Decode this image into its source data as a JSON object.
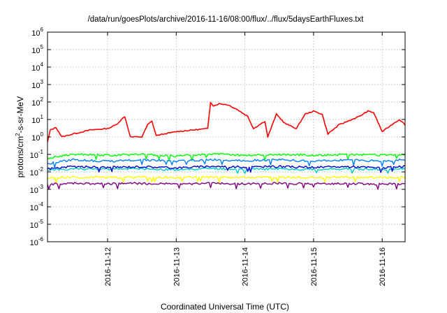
{
  "chart_data": {
    "type": "line",
    "title": "/data/run/goesPlots/archive/2016-11-16/08:00/flux/../flux/5daysEarthFluxes.txt",
    "xlabel": "Coordinated Universal Time (UTC)",
    "ylabel": {
      "main": "protons/cm",
      "sup": "2",
      "rest": "-s-sr-MeV"
    },
    "yscale": "log",
    "ylim": [
      1e-06,
      1000000.0
    ],
    "y_ticks": [
      {
        "base": "10",
        "exp": "-6",
        "value": 1e-06
      },
      {
        "base": "10",
        "exp": "-5",
        "value": 1e-05
      },
      {
        "base": "10",
        "exp": "-4",
        "value": 0.0001
      },
      {
        "base": "10",
        "exp": "-3",
        "value": 0.001
      },
      {
        "base": "10",
        "exp": "-2",
        "value": 0.01
      },
      {
        "base": "10",
        "exp": "-1",
        "value": 0.1
      },
      {
        "base": "10",
        "exp": "0",
        "value": 1
      },
      {
        "base": "10",
        "exp": "1",
        "value": 10
      },
      {
        "base": "10",
        "exp": "2",
        "value": 100
      },
      {
        "base": "10",
        "exp": "3",
        "value": 1000
      },
      {
        "base": "10",
        "exp": "4",
        "value": 10000
      },
      {
        "base": "10",
        "exp": "5",
        "value": 100000
      },
      {
        "base": "10",
        "exp": "6",
        "value": 1000000
      }
    ],
    "xlim": [
      "2016-11-11 03:00",
      "2016-11-16 08:00"
    ],
    "x_ticks": [
      "2016-11-12",
      "2016-11-13",
      "2016-11-14",
      "2016-11-15",
      "2016-11-16"
    ],
    "grid": true,
    "series": [
      {
        "color": "#ff0000",
        "points": [
          [
            "2016-11-11 03:00",
            0.5
          ],
          [
            "2016-11-11 04:00",
            2.5
          ],
          [
            "2016-11-11 06:00",
            3.5
          ],
          [
            "2016-11-11 08:00",
            1.0
          ],
          [
            "2016-11-11 12:00",
            1.5
          ],
          [
            "2016-11-11 18:00",
            2.5
          ],
          [
            "2016-11-12 00:00",
            3.0
          ],
          [
            "2016-11-12 03:00",
            5.0
          ],
          [
            "2016-11-12 06:00",
            15
          ],
          [
            "2016-11-12 08:00",
            1.0
          ],
          [
            "2016-11-12 12:00",
            1.0
          ],
          [
            "2016-11-12 14:00",
            5.0
          ],
          [
            "2016-11-12 15:30",
            8.0
          ],
          [
            "2016-11-12 17:00",
            1.2
          ],
          [
            "2016-11-12 20:00",
            1.5
          ],
          [
            "2016-11-13 00:00",
            2.0
          ],
          [
            "2016-11-13 06:00",
            2.5
          ],
          [
            "2016-11-13 11:00",
            3.0
          ],
          [
            "2016-11-13 12:00",
            100
          ],
          [
            "2016-11-13 13:00",
            60
          ],
          [
            "2016-11-13 15:00",
            80
          ],
          [
            "2016-11-13 18:00",
            70
          ],
          [
            "2016-11-13 21:00",
            40
          ],
          [
            "2016-11-14 01:00",
            15
          ],
          [
            "2016-11-14 03:00",
            3.0
          ],
          [
            "2016-11-14 07:00",
            8.0
          ],
          [
            "2016-11-14 08:00",
            1.0
          ],
          [
            "2016-11-14 11:00",
            20
          ],
          [
            "2016-11-14 14:00",
            6.0
          ],
          [
            "2016-11-14 18:00",
            3.0
          ],
          [
            "2016-11-14 21:00",
            20
          ],
          [
            "2016-11-15 00:00",
            30
          ],
          [
            "2016-11-15 03:00",
            20
          ],
          [
            "2016-11-15 05:00",
            1.5
          ],
          [
            "2016-11-15 09:00",
            5.0
          ],
          [
            "2016-11-15 12:00",
            8.0
          ],
          [
            "2016-11-15 16:00",
            15
          ],
          [
            "2016-11-15 19:00",
            30
          ],
          [
            "2016-11-15 21:00",
            25
          ],
          [
            "2016-11-16 00:00",
            2.0
          ],
          [
            "2016-11-16 04:00",
            6.0
          ],
          [
            "2016-11-16 06:00",
            10
          ],
          [
            "2016-11-16 08:00",
            5.0
          ]
        ]
      },
      {
        "color": "#00ff00",
        "points": [
          [
            "2016-11-11 03:00",
            0.06
          ],
          [
            "2016-11-11 12:00",
            0.1
          ],
          [
            "2016-11-12 00:00",
            0.09
          ],
          [
            "2016-11-12 12:00",
            0.1
          ],
          [
            "2016-11-13 00:00",
            0.08
          ],
          [
            "2016-11-13 12:00",
            0.11
          ],
          [
            "2016-11-14 00:00",
            0.09
          ],
          [
            "2016-11-14 12:00",
            0.1
          ],
          [
            "2016-11-15 00:00",
            0.09
          ],
          [
            "2016-11-15 12:00",
            0.1
          ],
          [
            "2016-11-16 00:00",
            0.09
          ],
          [
            "2016-11-16 08:00",
            0.1
          ]
        ]
      },
      {
        "color": "#0080ff",
        "points": [
          [
            "2016-11-11 03:00",
            0.03
          ],
          [
            "2016-11-11 12:00",
            0.05
          ],
          [
            "2016-11-12 00:00",
            0.04
          ],
          [
            "2016-11-12 12:00",
            0.05
          ],
          [
            "2016-11-13 00:00",
            0.04
          ],
          [
            "2016-11-13 12:00",
            0.05
          ],
          [
            "2016-11-14 00:00",
            0.045
          ],
          [
            "2016-11-14 12:00",
            0.05
          ],
          [
            "2016-11-15 00:00",
            0.04
          ],
          [
            "2016-11-15 12:00",
            0.05
          ],
          [
            "2016-11-16 00:00",
            0.04
          ],
          [
            "2016-11-16 08:00",
            0.05
          ]
        ]
      },
      {
        "color": "#00c8c8",
        "points": [
          [
            "2016-11-11 03:00",
            0.012
          ],
          [
            "2016-11-11 12:00",
            0.015
          ],
          [
            "2016-11-12 00:00",
            0.014
          ],
          [
            "2016-11-12 12:00",
            0.015
          ],
          [
            "2016-11-13 00:00",
            0.013
          ],
          [
            "2016-11-13 12:00",
            0.016
          ],
          [
            "2016-11-14 00:00",
            0.014
          ],
          [
            "2016-11-14 12:00",
            0.015
          ],
          [
            "2016-11-15 00:00",
            0.014
          ],
          [
            "2016-11-15 12:00",
            0.015
          ],
          [
            "2016-11-16 00:00",
            0.013
          ],
          [
            "2016-11-16 08:00",
            0.015
          ]
        ]
      },
      {
        "color": "#0000cc",
        "points": [
          [
            "2016-11-11 03:00",
            0.015
          ],
          [
            "2016-11-11 12:00",
            0.02
          ],
          [
            "2016-11-12 00:00",
            0.018
          ],
          [
            "2016-11-12 12:00",
            0.02
          ],
          [
            "2016-11-13 00:00",
            0.017
          ],
          [
            "2016-11-13 12:00",
            0.021
          ],
          [
            "2016-11-14 00:00",
            0.019
          ],
          [
            "2016-11-14 12:00",
            0.02
          ],
          [
            "2016-11-15 00:00",
            0.018
          ],
          [
            "2016-11-15 12:00",
            0.02
          ],
          [
            "2016-11-16 00:00",
            0.017
          ],
          [
            "2016-11-16 08:00",
            0.02
          ]
        ]
      },
      {
        "color": "#ffff00",
        "points": [
          [
            "2016-11-11 03:00",
            0.0045
          ],
          [
            "2016-11-11 12:00",
            0.005
          ],
          [
            "2016-11-12 00:00",
            0.0048
          ],
          [
            "2016-11-12 12:00",
            0.005
          ],
          [
            "2016-11-13 00:00",
            0.0047
          ],
          [
            "2016-11-13 12:00",
            0.005
          ],
          [
            "2016-11-14 00:00",
            0.0048
          ],
          [
            "2016-11-14 12:00",
            0.005
          ],
          [
            "2016-11-15 00:00",
            0.0048
          ],
          [
            "2016-11-15 12:00",
            0.005
          ],
          [
            "2016-11-16 00:00",
            0.0047
          ],
          [
            "2016-11-16 08:00",
            0.005
          ]
        ]
      },
      {
        "color": "#800080",
        "points": [
          [
            "2016-11-11 03:00",
            0.002
          ],
          [
            "2016-11-11 12:00",
            0.0022
          ],
          [
            "2016-11-12 00:00",
            0.0021
          ],
          [
            "2016-11-12 12:00",
            0.0022
          ],
          [
            "2016-11-13 00:00",
            0.002
          ],
          [
            "2016-11-13 12:00",
            0.0022
          ],
          [
            "2016-11-14 00:00",
            0.0021
          ],
          [
            "2016-11-14 12:00",
            0.0022
          ],
          [
            "2016-11-15 00:00",
            0.0021
          ],
          [
            "2016-11-15 12:00",
            0.0022
          ],
          [
            "2016-11-16 00:00",
            0.002
          ],
          [
            "2016-11-16 08:00",
            0.0021
          ]
        ]
      }
    ]
  }
}
